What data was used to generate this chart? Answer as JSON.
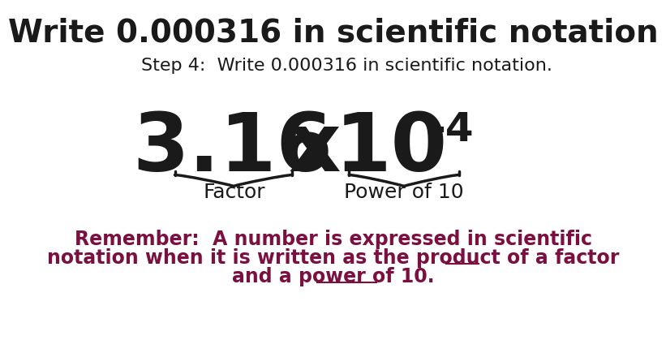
{
  "title": "Write 0.000316 in scientific notation",
  "step_text": "Step 4:  Write 0.000316 in scientific notation.",
  "factor_label": "Factor",
  "power_label": "Power of 10",
  "remember_line1": "Remember:  A number is expressed in scientific",
  "remember_line2": "notation when it is written as the product of a ",
  "remember_line2_underline": "factor",
  "remember_line3_pre": "and a ",
  "remember_line3_underline": "power of 10",
  "remember_line3_end": ".",
  "bg_color": "#ffffff",
  "title_color": "#1a1a1a",
  "step_color": "#1a1a1a",
  "expression_color": "#1a1a1a",
  "remember_color": "#7b1040",
  "brace_color": "#1a1a1a",
  "title_fontsize": 28,
  "step_fontsize": 16,
  "expression_fontsize": 72,
  "exponent_fontsize": 36,
  "label_fontsize": 18,
  "remember_fontsize": 17
}
